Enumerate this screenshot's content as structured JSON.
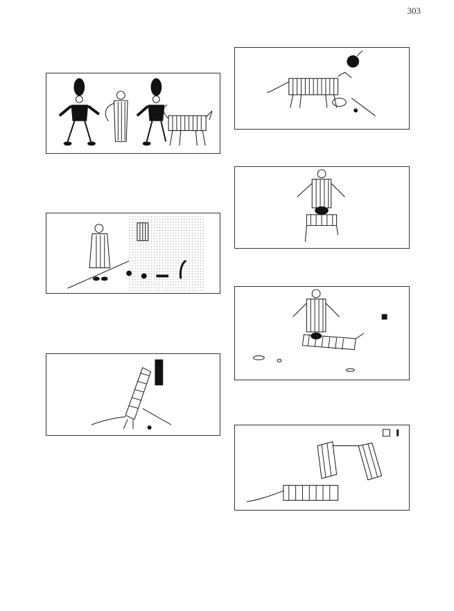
{
  "page": {
    "number": "303"
  },
  "panels": [
    {
      "id": "guards-and-dog"
    },
    {
      "id": "man-at-wall"
    },
    {
      "id": "animal-rearing"
    },
    {
      "id": "clown-on-animal"
    },
    {
      "id": "figure-over-animal"
    },
    {
      "id": "figure-riding"
    },
    {
      "id": "figures-falling"
    }
  ],
  "colors": {
    "ink": "#1a1a1a",
    "paper": "#ffffff",
    "border": "#333333"
  }
}
